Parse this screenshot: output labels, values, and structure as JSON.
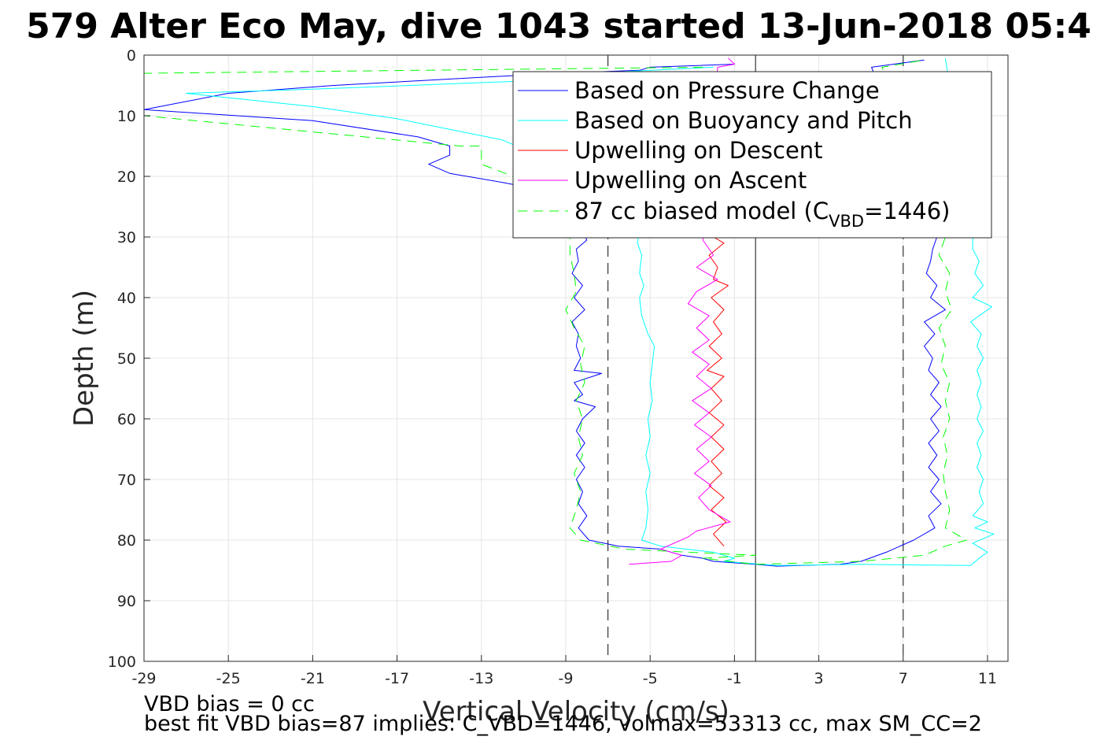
{
  "colors": {
    "pressure": "#0000ff",
    "buoyancy": "#00ffff",
    "descent": "#ff0000",
    "ascent": "#ff00ff",
    "model": "#00ff00",
    "grid": "#e5e5e5",
    "axis": "#262626"
  },
  "notes": {
    "line1": "VBD bias = 0 cc",
    "line2": "best fit VBD bias=87 implies: C_VBD=1446, volmax=53313 cc, max SM_CC=2"
  },
  "chart_data": {
    "type": "line",
    "title": "579 Alter Eco May, dive 1043 started 13-Jun-2018 05:4",
    "xlabel": "Vertical Velocity (cm/s)",
    "ylabel": "Depth (m)",
    "xlim": [
      -29,
      12
    ],
    "ylim": [
      0,
      100
    ],
    "y_reversed": true,
    "grid": true,
    "legend_position": "top-right",
    "xticks": [
      "-29",
      "-25",
      "-21",
      "-17",
      "-13",
      "-9",
      "-5",
      "-1",
      "3",
      "7",
      "11"
    ],
    "yticks": [
      "0",
      "10",
      "20",
      "30",
      "40",
      "50",
      "60",
      "70",
      "80",
      "90",
      "100"
    ],
    "reference_lines": {
      "vertical_solid_x": 0,
      "vertical_dashed_x": [
        -7,
        7
      ]
    },
    "legend": [
      {
        "key": "pressure",
        "label": "Based on Pressure Change",
        "style": "solid"
      },
      {
        "key": "buoyancy",
        "label": "Based on Buoyancy and Pitch",
        "style": "solid"
      },
      {
        "key": "descent",
        "label": "Upwelling on Descent",
        "style": "solid"
      },
      {
        "key": "ascent",
        "label": "Upwelling on Ascent",
        "style": "solid"
      },
      {
        "key": "model",
        "label_main": "87 cc biased model (C",
        "label_sub": "VBD",
        "label_tail": "=1446)",
        "style": "dashed"
      }
    ],
    "series": [
      {
        "name": "Based on Pressure Change",
        "key": "pressure",
        "points": [
          [
            -1,
            1.5
          ],
          [
            -5,
            2
          ],
          [
            -5.5,
            2.5
          ],
          [
            -9.5,
            3
          ],
          [
            -20,
            5
          ],
          [
            -25,
            6.3
          ],
          [
            -29,
            9
          ],
          [
            -21,
            10.8
          ],
          [
            -16,
            13.5
          ],
          [
            -14.5,
            15
          ],
          [
            -14.5,
            16.5
          ],
          [
            -15.5,
            18
          ],
          [
            -14.5,
            19.5
          ],
          [
            -12,
            21
          ],
          [
            -9,
            23
          ],
          [
            -8.5,
            25
          ],
          [
            -8.4,
            28
          ],
          [
            -8,
            30.5
          ],
          [
            -8.5,
            32
          ],
          [
            -8.4,
            34
          ],
          [
            -8.7,
            36
          ],
          [
            -8.2,
            38
          ],
          [
            -8.6,
            40
          ],
          [
            -8.1,
            42
          ],
          [
            -8.7,
            44
          ],
          [
            -8.4,
            46
          ],
          [
            -8.5,
            48
          ],
          [
            -8.3,
            50
          ],
          [
            -8.6,
            52
          ],
          [
            -7.3,
            52.5
          ],
          [
            -8.6,
            54
          ],
          [
            -8.2,
            56
          ],
          [
            -8.6,
            57
          ],
          [
            -7.6,
            58
          ],
          [
            -8.2,
            60
          ],
          [
            -8.5,
            62
          ],
          [
            -8.1,
            64
          ],
          [
            -8.5,
            66
          ],
          [
            -8.1,
            68
          ],
          [
            -8.5,
            70
          ],
          [
            -8.2,
            72
          ],
          [
            -8.4,
            74
          ],
          [
            -8,
            76
          ],
          [
            -8.4,
            78
          ],
          [
            -7.9,
            80
          ],
          [
            -6.5,
            81
          ],
          [
            -4.5,
            81.5
          ],
          [
            -3.5,
            82.5
          ],
          [
            -2.5,
            83
          ],
          [
            -2,
            83.5
          ],
          [
            0,
            84
          ],
          [
            1,
            84.3
          ],
          [
            4,
            84
          ],
          [
            5,
            83.5
          ],
          [
            6.2,
            82
          ],
          [
            7.5,
            80
          ],
          [
            8.5,
            78
          ],
          [
            8.2,
            76
          ],
          [
            8.8,
            74
          ],
          [
            8.3,
            72
          ],
          [
            8.7,
            70
          ],
          [
            8.2,
            68
          ],
          [
            8.6,
            66
          ],
          [
            8.2,
            64
          ],
          [
            8.7,
            62
          ],
          [
            8.3,
            60
          ],
          [
            8.8,
            58
          ],
          [
            8.3,
            56
          ],
          [
            8.7,
            54
          ],
          [
            8.2,
            52
          ],
          [
            8.4,
            50
          ],
          [
            8,
            48
          ],
          [
            8.5,
            46
          ],
          [
            8,
            44
          ],
          [
            9,
            42
          ],
          [
            8.3,
            40
          ],
          [
            8.6,
            38
          ],
          [
            8.1,
            36
          ],
          [
            8.3,
            34
          ],
          [
            8.4,
            32
          ],
          [
            8.6,
            30
          ],
          [
            5.5,
            2
          ],
          [
            8,
            0.8
          ]
        ]
      },
      {
        "name": "Based on Buoyancy and Pitch",
        "key": "buoyancy",
        "points": [
          [
            -2,
            2
          ],
          [
            -8,
            3
          ],
          [
            -9,
            4
          ],
          [
            -20,
            5.5
          ],
          [
            -27,
            6.3
          ],
          [
            -21,
            8.5
          ],
          [
            -17,
            10.5
          ],
          [
            -12,
            14
          ],
          [
            -10,
            17
          ],
          [
            -9,
            20
          ],
          [
            -7.5,
            23
          ],
          [
            -6,
            26
          ],
          [
            -5.5,
            29
          ],
          [
            -5.6,
            31
          ],
          [
            -5.4,
            33
          ],
          [
            -5.5,
            36
          ],
          [
            -5.3,
            38
          ],
          [
            -5.5,
            40
          ],
          [
            -5.4,
            43
          ],
          [
            -5.1,
            46
          ],
          [
            -4.8,
            48
          ],
          [
            -4.9,
            51
          ],
          [
            -5,
            54
          ],
          [
            -4.9,
            57
          ],
          [
            -5.1,
            60
          ],
          [
            -5,
            63
          ],
          [
            -5.2,
            66
          ],
          [
            -5,
            69
          ],
          [
            -5.2,
            72
          ],
          [
            -5.1,
            75
          ],
          [
            -5.2,
            78
          ],
          [
            -5.4,
            80
          ],
          [
            -4.5,
            81
          ],
          [
            -2,
            82
          ],
          [
            -1,
            83
          ],
          [
            -1.5,
            83.5
          ],
          [
            1,
            84.2
          ],
          [
            5,
            84
          ],
          [
            10.2,
            84.2
          ],
          [
            10.6,
            83
          ],
          [
            11,
            82
          ],
          [
            10.3,
            80.5
          ],
          [
            11.3,
            79
          ],
          [
            10.4,
            78
          ],
          [
            11,
            77
          ],
          [
            10.3,
            76
          ],
          [
            10.8,
            74
          ],
          [
            10.6,
            72
          ],
          [
            10.8,
            70
          ],
          [
            10.5,
            68
          ],
          [
            10.7,
            66
          ],
          [
            10.5,
            64
          ],
          [
            10.8,
            62
          ],
          [
            10.5,
            60
          ],
          [
            10.7,
            58
          ],
          [
            10.5,
            56
          ],
          [
            10.7,
            54
          ],
          [
            10.5,
            52
          ],
          [
            10.8,
            50
          ],
          [
            10.5,
            48
          ],
          [
            10.7,
            46
          ],
          [
            10.2,
            44
          ],
          [
            11.2,
            41.5
          ],
          [
            10.3,
            40
          ],
          [
            10.8,
            38
          ],
          [
            10.4,
            36
          ],
          [
            10.6,
            34
          ],
          [
            10.3,
            32
          ],
          [
            10.3,
            30
          ],
          [
            9,
            0.5
          ]
        ]
      },
      {
        "name": "Upwelling on Descent",
        "key": "descent",
        "points": [
          [
            -2,
            30
          ],
          [
            -1.5,
            31
          ],
          [
            -2.2,
            33
          ],
          [
            -1.8,
            35
          ],
          [
            -2,
            37
          ],
          [
            -1.3,
            38
          ],
          [
            -2.1,
            40
          ],
          [
            -1.5,
            42
          ],
          [
            -2,
            44
          ],
          [
            -1.6,
            46
          ],
          [
            -2.2,
            48
          ],
          [
            -1.6,
            50
          ],
          [
            -2.3,
            52
          ],
          [
            -1.5,
            53
          ],
          [
            -2.1,
            55
          ],
          [
            -1.6,
            57
          ],
          [
            -2.2,
            59
          ],
          [
            -1.5,
            61
          ],
          [
            -2.1,
            63
          ],
          [
            -1.5,
            65
          ],
          [
            -2.1,
            67
          ],
          [
            -1.6,
            69
          ],
          [
            -2.2,
            71
          ],
          [
            -1.5,
            73
          ],
          [
            -2.1,
            75
          ],
          [
            -1.4,
            77
          ],
          [
            -2,
            79
          ],
          [
            -1.5,
            81
          ]
        ]
      },
      {
        "name": "Upwelling on Ascent",
        "key": "ascent",
        "points": [
          [
            -1.3,
            0.5
          ],
          [
            -1,
            1.5
          ],
          [
            -1.8,
            2
          ],
          [
            -2.5,
            30.5
          ],
          [
            -2,
            33
          ],
          [
            -2.8,
            35
          ],
          [
            -1.8,
            37
          ],
          [
            -2.8,
            39
          ],
          [
            -3.2,
            41
          ],
          [
            -2.2,
            43
          ],
          [
            -2.8,
            45
          ],
          [
            -2.2,
            47
          ],
          [
            -3,
            49
          ],
          [
            -2.2,
            51
          ],
          [
            -2.8,
            53
          ],
          [
            -2.1,
            55
          ],
          [
            -3,
            57
          ],
          [
            -2.2,
            59
          ],
          [
            -2.9,
            61
          ],
          [
            -2.1,
            63
          ],
          [
            -2.8,
            65
          ],
          [
            -2.2,
            67
          ],
          [
            -2.9,
            69
          ],
          [
            -2.1,
            71
          ],
          [
            -2.7,
            73
          ],
          [
            -2.2,
            75
          ],
          [
            -1.2,
            77
          ],
          [
            -2.8,
            78.5
          ],
          [
            -3.2,
            79.5
          ],
          [
            -4.5,
            81.5
          ],
          [
            -3.5,
            82.5
          ],
          [
            -4,
            83.5
          ],
          [
            -6,
            84
          ]
        ]
      },
      {
        "name": "87 cc biased model (CVBD=1446)",
        "key": "model",
        "dashed": true,
        "points": [
          [
            -2.5,
            2
          ],
          [
            -29,
            3
          ],
          [
            -29,
            10
          ],
          [
            -14,
            15
          ],
          [
            -13,
            15
          ],
          [
            -13,
            18
          ],
          [
            -11.5,
            20
          ],
          [
            -10.5,
            24
          ],
          [
            -9.2,
            27
          ],
          [
            -8.8,
            30
          ],
          [
            -8.8,
            33
          ],
          [
            -8.6,
            36
          ],
          [
            -8.5,
            39
          ],
          [
            -9,
            42
          ],
          [
            -8.6,
            45
          ],
          [
            -8.1,
            48
          ],
          [
            -8.3,
            51
          ],
          [
            -8.1,
            54
          ],
          [
            -8.5,
            57
          ],
          [
            -8.2,
            60
          ],
          [
            -8.4,
            63
          ],
          [
            -8.2,
            66
          ],
          [
            -8.6,
            69
          ],
          [
            -8.3,
            72
          ],
          [
            -8.5,
            75
          ],
          [
            -8.8,
            78
          ],
          [
            -8.3,
            80
          ],
          [
            -6.2,
            81.5
          ],
          [
            0,
            82.5
          ],
          [
            -2.5,
            83
          ],
          [
            0,
            84
          ],
          [
            5,
            83.5
          ],
          [
            8,
            82.5
          ],
          [
            9,
            81
          ],
          [
            10,
            80
          ],
          [
            9,
            78
          ],
          [
            9.2,
            75
          ],
          [
            9,
            72
          ],
          [
            8.9,
            69
          ],
          [
            9.1,
            66
          ],
          [
            8.9,
            63
          ],
          [
            9.2,
            60
          ],
          [
            9,
            57
          ],
          [
            9.2,
            54
          ],
          [
            8.8,
            51
          ],
          [
            9,
            48
          ],
          [
            8.7,
            45
          ],
          [
            9.3,
            42
          ],
          [
            9,
            39
          ],
          [
            9.2,
            36
          ],
          [
            8.7,
            33
          ],
          [
            9,
            30
          ],
          [
            6,
            2
          ],
          [
            8,
            0.8
          ]
        ]
      }
    ]
  }
}
